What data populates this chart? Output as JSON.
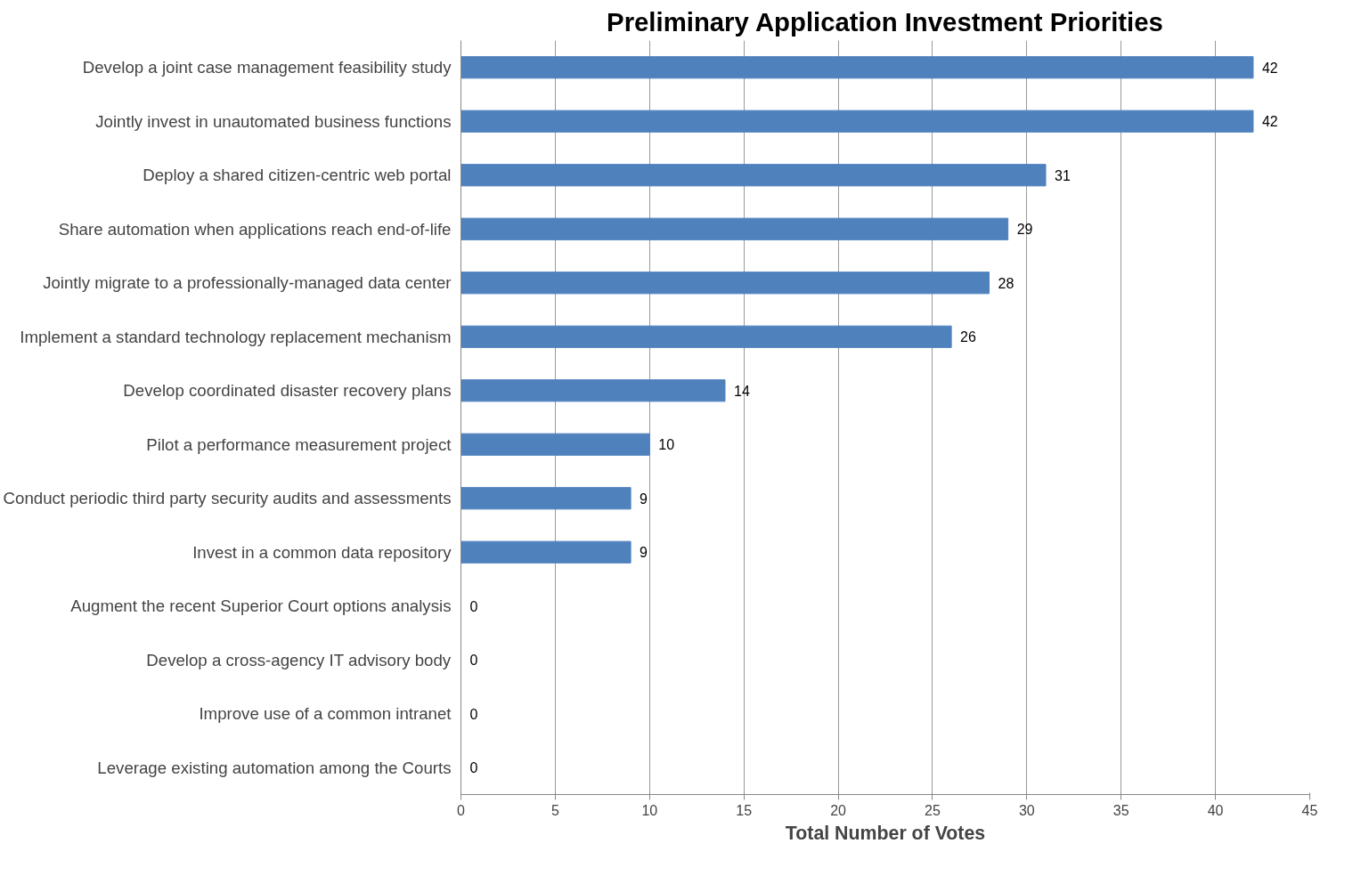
{
  "chart_data": {
    "type": "bar",
    "orientation": "horizontal",
    "title": "Preliminary Application Investment Priorities",
    "xlabel": "Total Number of Votes",
    "categories": [
      "Develop a joint case management feasibility study",
      "Jointly invest in unautomated business functions",
      "Deploy a shared citizen-centric web portal",
      "Share automation when applications reach end-of-life",
      "Jointly migrate to a professionally-managed data center",
      "Implement a standard technology replacement mechanism",
      "Develop coordinated disaster recovery plans",
      "Pilot a performance measurement project",
      "Conduct periodic third party security audits and assessments",
      "Invest in a common data repository",
      "Augment the recent Superior Court options analysis",
      "Develop a cross-agency IT advisory body",
      "Improve use of a common intranet",
      "Leverage existing automation among the Courts"
    ],
    "values": [
      42,
      42,
      31,
      29,
      28,
      26,
      14,
      10,
      9,
      9,
      0,
      0,
      0,
      0
    ],
    "color": "#4f81bd",
    "xlim": [
      0,
      45
    ],
    "xticks": [
      0,
      5,
      10,
      15,
      20,
      25,
      30,
      35,
      40,
      45
    ],
    "grid": "x",
    "data_labels": true
  }
}
